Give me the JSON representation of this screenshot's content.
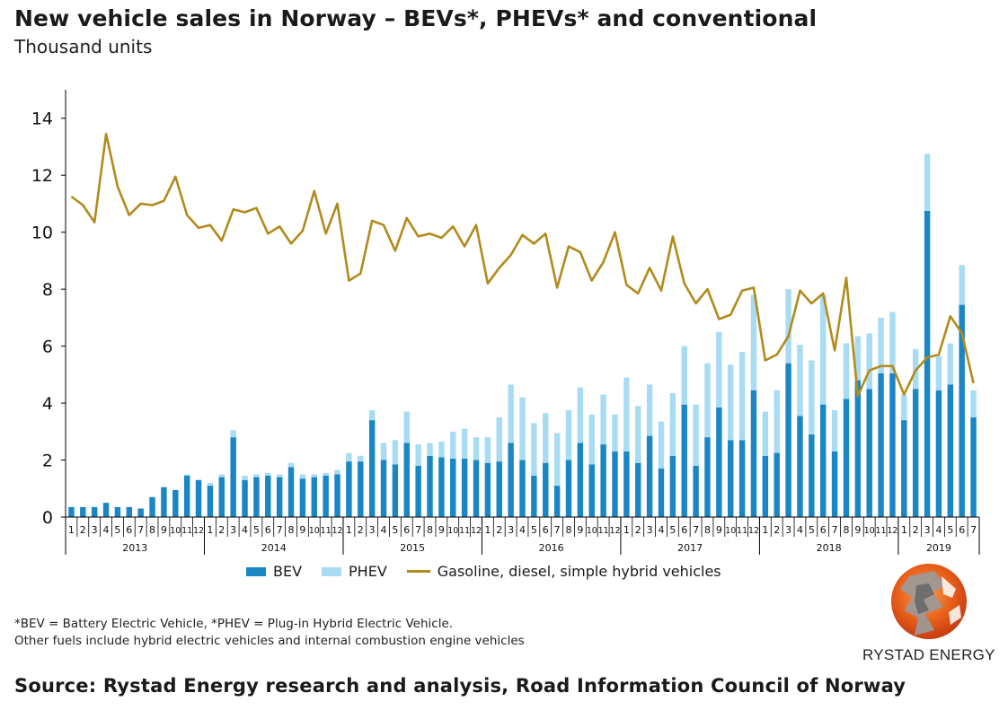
{
  "header": {
    "title": "New vehicle sales in Norway – BEVs*, PHEVs* and conventional",
    "subtitle": "Thousand units"
  },
  "legend": {
    "bev": "BEV",
    "phev": "PHEV",
    "conventional": "Gasoline, diesel, simple hybrid vehicles"
  },
  "footnote": {
    "line1": "*BEV = Battery Electric Vehicle, *PHEV = Plug-in Hybrid Electric Vehicle.",
    "line2": "Other fuels include hybrid electric vehicles and internal combustion engine vehicles"
  },
  "source": "Source: Rystad Energy research and analysis, Road Information Council of Norway",
  "logo": {
    "text": "RYSTAD ENERGY"
  },
  "colors": {
    "bev": "#1a86c4",
    "phev": "#a8dcf3",
    "conventional": "#b38a1c",
    "axis": "#000000"
  },
  "chart_data": {
    "type": "bar",
    "stacked": true,
    "ylim": [
      0,
      15
    ],
    "yticks": [
      0,
      2,
      4,
      6,
      8,
      10,
      12,
      14
    ],
    "grid": false,
    "legend_position": "bottom",
    "years": [
      {
        "label": "2013",
        "months": 12
      },
      {
        "label": "2014",
        "months": 12
      },
      {
        "label": "2015",
        "months": 12
      },
      {
        "label": "2016",
        "months": 12
      },
      {
        "label": "2017",
        "months": 12
      },
      {
        "label": "2018",
        "months": 12
      },
      {
        "label": "2019",
        "months": 7
      }
    ],
    "categories": [
      "1",
      "2",
      "3",
      "4",
      "5",
      "6",
      "7",
      "8",
      "9",
      "10",
      "11",
      "12",
      "1",
      "2",
      "3",
      "4",
      "5",
      "6",
      "7",
      "8",
      "9",
      "10",
      "11",
      "12",
      "1",
      "2",
      "3",
      "4",
      "5",
      "6",
      "7",
      "8",
      "9",
      "10",
      "11",
      "12",
      "1",
      "2",
      "3",
      "4",
      "5",
      "6",
      "7",
      "8",
      "9",
      "10",
      "11",
      "12",
      "1",
      "2",
      "3",
      "4",
      "5",
      "6",
      "7",
      "8",
      "9",
      "10",
      "11",
      "12",
      "1",
      "2",
      "3",
      "4",
      "5",
      "6",
      "7",
      "8",
      "9",
      "10",
      "11",
      "12",
      "1",
      "2",
      "3",
      "4",
      "5",
      "6",
      "7"
    ],
    "series": [
      {
        "name": "BEV",
        "kind": "bar",
        "values": [
          0.35,
          0.35,
          0.35,
          0.5,
          0.35,
          0.35,
          0.3,
          0.7,
          1.05,
          0.95,
          1.45,
          1.3,
          1.1,
          1.4,
          2.8,
          1.3,
          1.4,
          1.45,
          1.4,
          1.75,
          1.35,
          1.4,
          1.45,
          1.5,
          1.95,
          1.95,
          3.4,
          2.0,
          1.85,
          2.6,
          1.8,
          2.15,
          2.1,
          2.05,
          2.05,
          2.0,
          1.9,
          1.95,
          2.6,
          2.0,
          1.45,
          1.9,
          1.1,
          2.0,
          2.6,
          1.85,
          2.55,
          2.3,
          2.3,
          1.9,
          2.85,
          1.7,
          2.15,
          3.95,
          1.8,
          2.8,
          3.85,
          2.7,
          2.7,
          4.45,
          2.15,
          2.25,
          5.4,
          3.55,
          2.9,
          3.95,
          2.3,
          4.15,
          4.8,
          4.5,
          5.05,
          5.05,
          3.4,
          4.5,
          10.75,
          4.45,
          4.65,
          7.45,
          3.5
        ]
      },
      {
        "name": "PHEV",
        "kind": "bar",
        "values": [
          0,
          0,
          0,
          0,
          0,
          0,
          0,
          0,
          0,
          0,
          0.05,
          0,
          0.1,
          0.1,
          0.25,
          0.15,
          0.1,
          0.1,
          0.1,
          0.15,
          0.15,
          0.1,
          0.1,
          0.15,
          0.3,
          0.2,
          0.35,
          0.6,
          0.85,
          1.1,
          0.75,
          0.45,
          0.55,
          0.95,
          1.05,
          0.8,
          0.9,
          1.55,
          2.05,
          2.2,
          1.85,
          1.75,
          1.85,
          1.75,
          1.95,
          1.75,
          1.75,
          1.3,
          2.6,
          2.0,
          1.8,
          1.65,
          2.2,
          2.05,
          2.15,
          2.6,
          2.65,
          2.65,
          3.1,
          3.35,
          1.55,
          2.2,
          2.6,
          2.5,
          2.6,
          3.85,
          1.45,
          1.95,
          1.55,
          1.95,
          1.95,
          2.15,
          0.9,
          1.4,
          2.0,
          1.2,
          1.45,
          1.4,
          0.95
        ]
      },
      {
        "name": "Gasoline, diesel, simple hybrid vehicles",
        "kind": "line",
        "values": [
          11.25,
          10.95,
          10.35,
          13.45,
          11.6,
          10.6,
          11.0,
          10.95,
          11.1,
          11.95,
          10.6,
          10.15,
          10.25,
          9.7,
          10.8,
          10.7,
          10.85,
          9.95,
          10.2,
          9.6,
          10.05,
          11.45,
          9.95,
          11.0,
          8.3,
          8.55,
          10.4,
          10.25,
          9.35,
          10.5,
          9.85,
          9.95,
          9.8,
          10.2,
          9.5,
          10.25,
          8.2,
          8.75,
          9.2,
          9.9,
          9.6,
          9.95,
          8.05,
          9.5,
          9.3,
          8.3,
          8.95,
          10.0,
          8.15,
          7.85,
          8.75,
          7.95,
          9.85,
          8.2,
          7.5,
          8.0,
          6.95,
          7.1,
          7.95,
          8.05,
          5.5,
          5.7,
          6.35,
          7.95,
          7.5,
          7.85,
          5.85,
          8.4,
          4.25,
          5.15,
          5.3,
          5.3,
          4.3,
          5.15,
          5.6,
          5.7,
          7.05,
          6.45,
          4.7
        ]
      }
    ]
  }
}
